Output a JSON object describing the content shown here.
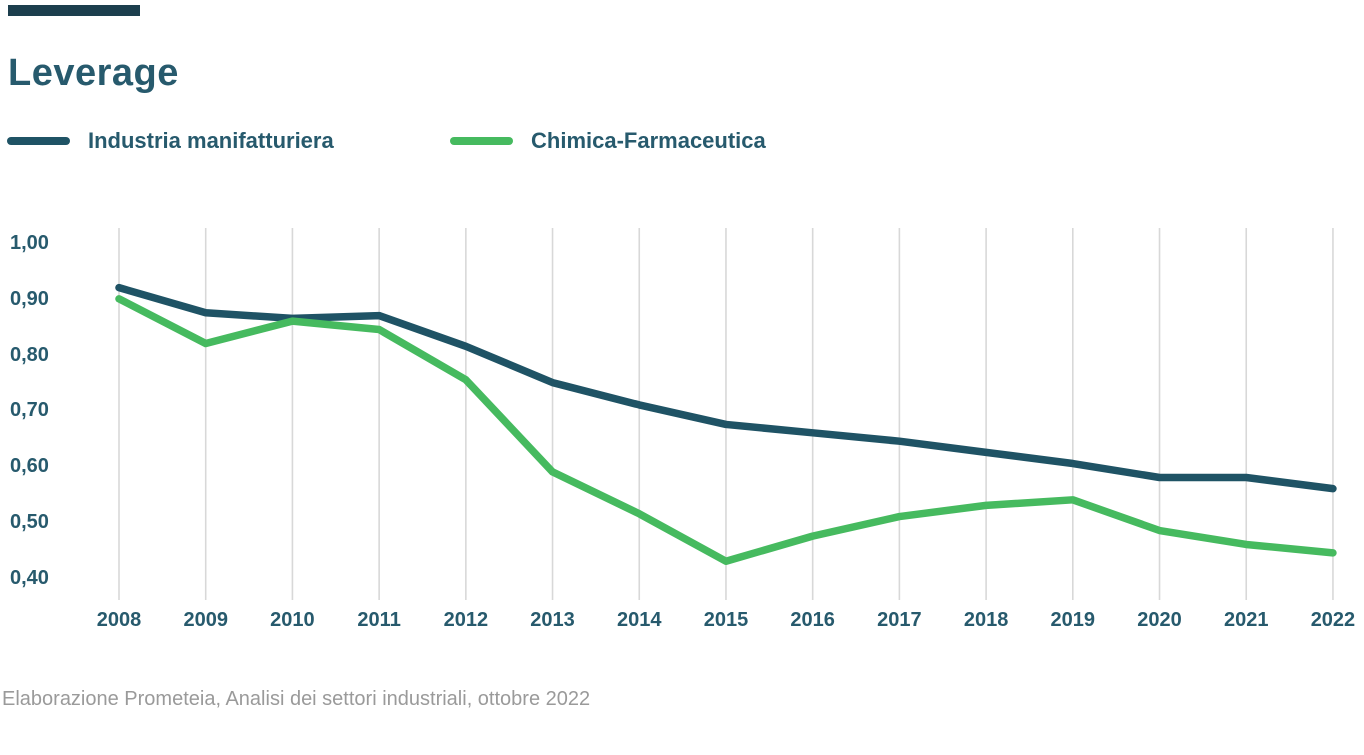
{
  "brand_bar_color": "#1c3e4d",
  "header": {
    "title": "Leverage"
  },
  "legend": {
    "items": [
      {
        "label": "Industria manifatturiera",
        "color": "#1f5365"
      },
      {
        "label": "Chimica-Farmaceutica",
        "color": "#46ba5f"
      }
    ]
  },
  "source_note": "Elaborazione Prometeia, Analisi dei settori industriali, ottobre 2022",
  "colors": {
    "text_navy": "#275a6d",
    "line_navy": "#1f5365",
    "line_green": "#46ba5f",
    "gridline": "#d8d8d8",
    "source_gray": "#9a9a9a"
  },
  "chart_data": {
    "type": "line",
    "title": "Leverage",
    "x": [
      2008,
      2009,
      2010,
      2011,
      2012,
      2013,
      2014,
      2015,
      2016,
      2017,
      2018,
      2019,
      2020,
      2021,
      2022
    ],
    "x_tick_labels": [
      "2008",
      "2009",
      "2010",
      "2011",
      "2012",
      "2013",
      "2014",
      "2015",
      "2016",
      "2017",
      "2018",
      "2019",
      "2020",
      "2021",
      "2022"
    ],
    "y_ticks": [
      1.0,
      0.9,
      0.8,
      0.7,
      0.6,
      0.5,
      0.4
    ],
    "y_tick_labels": [
      "1,00",
      "0,90",
      "0,80",
      "0,70",
      "0,60",
      "0,50",
      "0,40"
    ],
    "ylim": [
      0.4,
      1.0
    ],
    "xlabel": "",
    "ylabel": "",
    "grid": "vertical-only",
    "legend_position": "top-left",
    "series": [
      {
        "name": "Industria manifatturiera",
        "color": "#1f5365",
        "values": [
          0.92,
          0.875,
          0.865,
          0.87,
          0.815,
          0.75,
          0.71,
          0.675,
          0.66,
          0.645,
          0.625,
          0.605,
          0.58,
          0.58,
          0.56
        ]
      },
      {
        "name": "Chimica-Farmaceutica",
        "color": "#46ba5f",
        "values": [
          0.9,
          0.82,
          0.86,
          0.845,
          0.755,
          0.59,
          0.515,
          0.43,
          0.475,
          0.51,
          0.53,
          0.54,
          0.485,
          0.46,
          0.445
        ]
      }
    ],
    "annotations": [
      "Elaborazione Prometeia, Analisi dei settori industriali, ottobre 2022"
    ]
  }
}
